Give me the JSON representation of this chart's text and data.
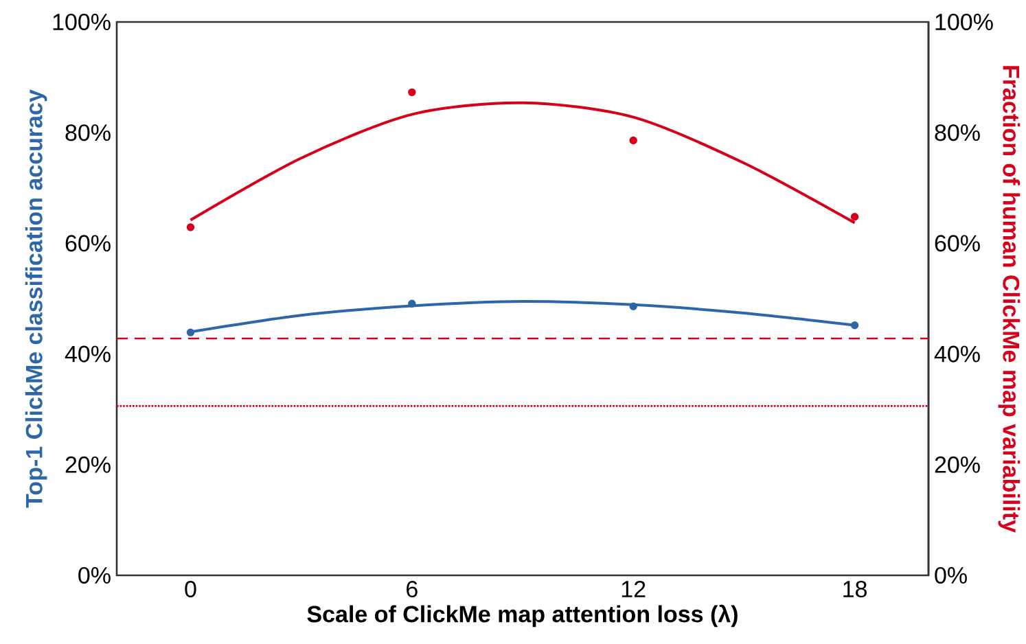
{
  "chart_data": {
    "type": "scatter",
    "xlabel": "Scale of ClickMe map attention loss (λ)",
    "ylabel": "Top-1 ClickMe classification accuracy",
    "y2label": "Fraction of human ClickMe map variability",
    "xlim": [
      -2,
      20
    ],
    "xticks": [
      0,
      6,
      12,
      18
    ],
    "ylim": [
      0,
      100
    ],
    "yticks": [
      {
        "value": 0,
        "label": "0%"
      },
      {
        "value": 20,
        "label": "20%"
      },
      {
        "value": 40,
        "label": "40%"
      },
      {
        "value": 60,
        "label": "60%"
      },
      {
        "value": 80,
        "label": "80%"
      },
      {
        "value": 100,
        "label": "100%"
      }
    ],
    "y2lim": [
      0,
      100
    ],
    "y2ticks": [
      {
        "value": 0,
        "label": "0%"
      },
      {
        "value": 20,
        "label": "20%"
      },
      {
        "value": 40,
        "label": "40%"
      },
      {
        "value": 60,
        "label": "60%"
      },
      {
        "value": 80,
        "label": "80%"
      },
      {
        "value": 100,
        "label": "100%"
      }
    ],
    "grid": false,
    "series": [
      {
        "color": "#2e67a8",
        "marker": "circle",
        "x": [
          0,
          6,
          12,
          18
        ],
        "values": [
          43.9,
          49.1,
          48.6,
          45.2
        ]
      },
      {
        "type": "line",
        "marker": "none",
        "color": "#2e67a8",
        "x": [
          0,
          3,
          6,
          9,
          12,
          15,
          18
        ],
        "values": [
          44.0,
          47.0,
          48.7,
          49.5,
          48.9,
          47.4,
          45.2
        ]
      },
      {
        "color": "#d7001b",
        "marker": "circle",
        "axis": "y2",
        "x": [
          0,
          6,
          12,
          18
        ],
        "values": [
          62.9,
          87.3,
          78.6,
          64.8
        ]
      },
      {
        "type": "line",
        "marker": "none",
        "color": "#d7001b",
        "axis": "y2",
        "x": [
          0,
          3,
          6,
          9,
          12,
          15,
          18
        ],
        "values": [
          64.2,
          75.4,
          83.3,
          85.4,
          82.8,
          74.5,
          63.7
        ]
      }
    ],
    "ref_lines": [
      {
        "axis": "y2",
        "value": 42.8,
        "color": "#d7001b",
        "line_style": "dashed"
      },
      {
        "axis": "y2",
        "value": 30.6,
        "color": "#d7001b",
        "line_style": "dotted"
      }
    ]
  }
}
